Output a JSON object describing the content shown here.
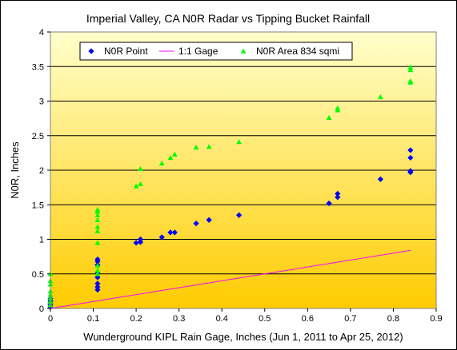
{
  "chart_data": {
    "type": "scatter",
    "title": "Imperial Valley, CA N0R Radar vs Tipping Bucket Rainfall",
    "xlabel": "Wunderground KIPL Rain Gage, Inches (Jun 1, 2011 to Apr 25, 2012)",
    "ylabel": "N0R, Inches",
    "xlim": [
      0,
      0.9
    ],
    "ylim": [
      0,
      4
    ],
    "x_ticks": [
      0,
      0.1,
      0.2,
      0.3,
      0.4,
      0.5,
      0.6,
      0.7,
      0.8,
      0.9
    ],
    "x_tick_labels": [
      "0",
      "0.1",
      "0.2",
      "0.3",
      "0.4",
      "0.5",
      "0.6",
      "0.7",
      "0.8",
      "0.9"
    ],
    "y_ticks": [
      0,
      0.5,
      1,
      1.5,
      2,
      2.5,
      3,
      3.5,
      4
    ],
    "y_tick_labels": [
      "0",
      "0.5",
      "1",
      "1.5",
      "2",
      "2.5",
      "3",
      "3.5",
      "4"
    ],
    "grid": true,
    "legend_position": "top-left",
    "background_gradient": [
      "#ffffcc",
      "#ffcc00"
    ],
    "series": [
      {
        "name": "N0R Point",
        "marker": "diamond",
        "color": "#0000ff",
        "points": [
          [
            0,
            0.02
          ],
          [
            0,
            0.05
          ],
          [
            0,
            0.08
          ],
          [
            0,
            0.11
          ],
          [
            0,
            0.14
          ],
          [
            0.11,
            0.27
          ],
          [
            0.11,
            0.31
          ],
          [
            0.11,
            0.36
          ],
          [
            0.11,
            0.45
          ],
          [
            0.11,
            0.52
          ],
          [
            0.11,
            0.63
          ],
          [
            0.11,
            0.68
          ],
          [
            0.11,
            0.71
          ],
          [
            0.2,
            0.95
          ],
          [
            0.21,
            0.96
          ],
          [
            0.21,
            1.0
          ],
          [
            0.26,
            1.03
          ],
          [
            0.28,
            1.1
          ],
          [
            0.29,
            1.1
          ],
          [
            0.34,
            1.23
          ],
          [
            0.37,
            1.28
          ],
          [
            0.44,
            1.35
          ],
          [
            0.65,
            1.52
          ],
          [
            0.67,
            1.61
          ],
          [
            0.67,
            1.66
          ],
          [
            0.77,
            1.87
          ],
          [
            0.84,
            1.97
          ],
          [
            0.84,
            1.99
          ],
          [
            0.84,
            2.18
          ],
          [
            0.84,
            2.29
          ]
        ]
      },
      {
        "name": "1:1 Gage",
        "marker": "line",
        "color": "#ff00ff",
        "points": [
          [
            0,
            0
          ],
          [
            0.84,
            0.84
          ]
        ]
      },
      {
        "name": "N0R Area 834 sqmi",
        "marker": "triangle",
        "color": "#00ff00",
        "points": [
          [
            0,
            0.05
          ],
          [
            0,
            0.1
          ],
          [
            0,
            0.15
          ],
          [
            0,
            0.2
          ],
          [
            0,
            0.25
          ],
          [
            0,
            0.35
          ],
          [
            0,
            0.4
          ],
          [
            0,
            0.5
          ],
          [
            0.11,
            0.5
          ],
          [
            0.11,
            0.55
          ],
          [
            0.11,
            0.62
          ],
          [
            0.11,
            0.95
          ],
          [
            0.11,
            1.12
          ],
          [
            0.11,
            1.18
          ],
          [
            0.11,
            1.28
          ],
          [
            0.11,
            1.35
          ],
          [
            0.11,
            1.4
          ],
          [
            0.11,
            1.43
          ],
          [
            0.2,
            1.77
          ],
          [
            0.21,
            1.8
          ],
          [
            0.21,
            2.02
          ],
          [
            0.26,
            2.1
          ],
          [
            0.28,
            2.18
          ],
          [
            0.29,
            2.23
          ],
          [
            0.34,
            2.33
          ],
          [
            0.37,
            2.34
          ],
          [
            0.44,
            2.41
          ],
          [
            0.65,
            2.76
          ],
          [
            0.67,
            2.87
          ],
          [
            0.67,
            2.9
          ],
          [
            0.77,
            3.06
          ],
          [
            0.84,
            3.27
          ],
          [
            0.84,
            3.29
          ],
          [
            0.84,
            3.45
          ],
          [
            0.84,
            3.49
          ]
        ]
      }
    ]
  }
}
